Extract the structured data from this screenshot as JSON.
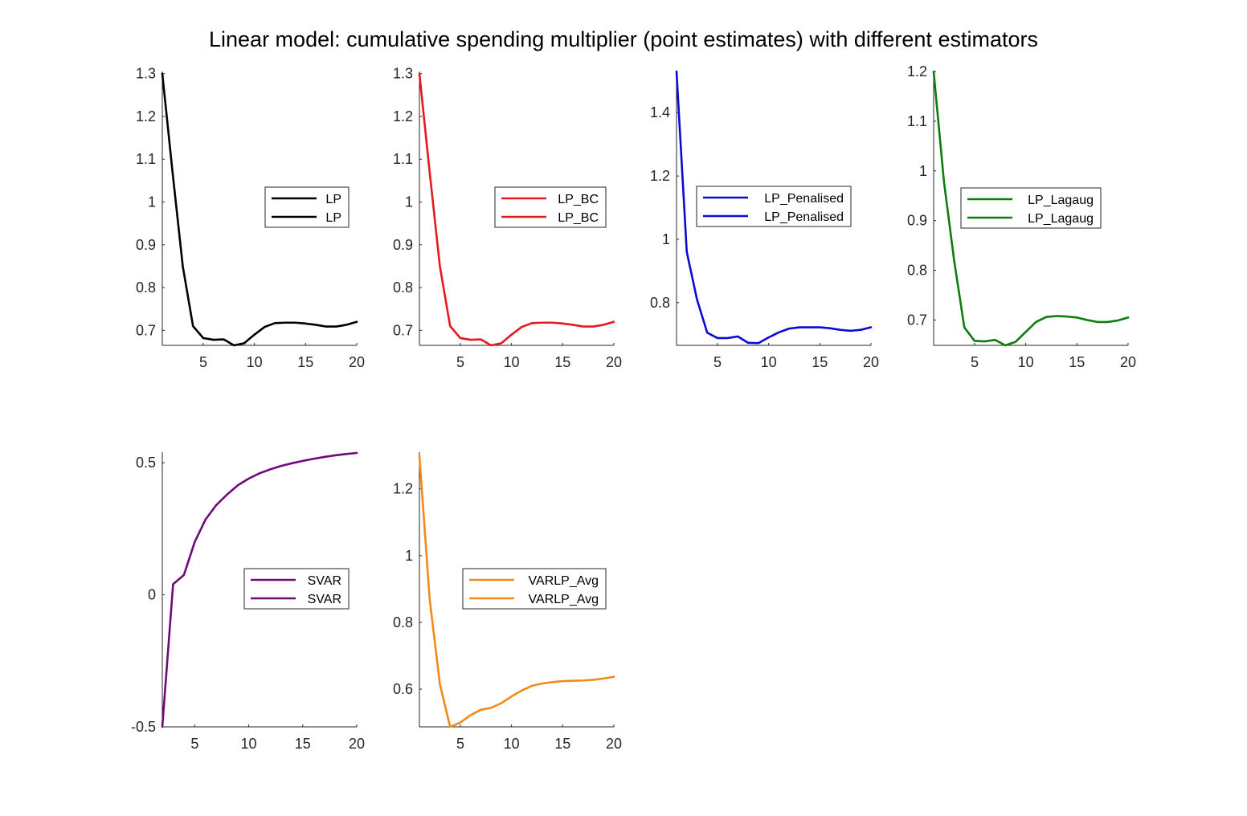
{
  "figure": {
    "title": "Linear model: cumulative spending multiplier (point estimates) with different estimators"
  },
  "chart_data": [
    {
      "type": "line",
      "x": [
        1,
        2,
        3,
        4,
        5,
        6,
        7,
        8,
        9,
        10,
        11,
        12,
        13,
        14,
        15,
        16,
        17,
        18,
        19,
        20
      ],
      "series": [
        {
          "name": "LP",
          "color": "#000000",
          "values": [
            1.3,
            1.07,
            0.85,
            0.71,
            0.682,
            0.678,
            0.679,
            0.665,
            0.67,
            0.69,
            0.708,
            0.717,
            0.718,
            0.718,
            0.716,
            0.713,
            0.709,
            0.709,
            0.713,
            0.72
          ]
        }
      ],
      "legend": [
        "LP",
        "LP"
      ],
      "legend_position": "east",
      "xlim": [
        1,
        20
      ],
      "ylim": [
        0.665,
        1.305
      ],
      "xticks": [
        5,
        10,
        15,
        20
      ],
      "yticks": [
        0.7,
        0.8,
        0.9,
        1,
        1.1,
        1.2,
        1.3
      ]
    },
    {
      "type": "line",
      "x": [
        1,
        2,
        3,
        4,
        5,
        6,
        7,
        8,
        9,
        10,
        11,
        12,
        13,
        14,
        15,
        16,
        17,
        18,
        19,
        20
      ],
      "series": [
        {
          "name": "LP_BC",
          "color": "#e41a1c",
          "values": [
            1.3,
            1.07,
            0.85,
            0.71,
            0.682,
            0.678,
            0.679,
            0.665,
            0.67,
            0.69,
            0.708,
            0.717,
            0.718,
            0.718,
            0.716,
            0.713,
            0.709,
            0.709,
            0.713,
            0.72
          ]
        }
      ],
      "legend": [
        "LP_BC",
        "LP_BC"
      ],
      "legend_position": "east",
      "xlim": [
        1,
        20
      ],
      "ylim": [
        0.665,
        1.305
      ],
      "xticks": [
        5,
        10,
        15,
        20
      ],
      "yticks": [
        0.7,
        0.8,
        0.9,
        1,
        1.1,
        1.2,
        1.3
      ]
    },
    {
      "type": "line",
      "x": [
        1,
        2,
        3,
        4,
        5,
        6,
        7,
        8,
        9,
        10,
        11,
        12,
        13,
        14,
        15,
        16,
        17,
        18,
        19,
        20
      ],
      "series": [
        {
          "name": "LP_Penalised",
          "color": "#0a0ad4",
          "values": [
            1.53,
            0.96,
            0.81,
            0.705,
            0.688,
            0.688,
            0.693,
            0.673,
            0.672,
            0.69,
            0.706,
            0.718,
            0.722,
            0.722,
            0.722,
            0.719,
            0.714,
            0.711,
            0.714,
            0.722
          ]
        }
      ],
      "legend": [
        "LP_Penalised",
        "LP_Penalised"
      ],
      "legend_position": "north",
      "xlim": [
        1,
        20
      ],
      "ylim": [
        0.665,
        1.53
      ],
      "xticks": [
        5,
        10,
        15,
        20
      ],
      "yticks": [
        0.8,
        1,
        1.2,
        1.4
      ]
    },
    {
      "type": "line",
      "x": [
        1,
        2,
        3,
        4,
        5,
        6,
        7,
        8,
        9,
        10,
        11,
        12,
        13,
        14,
        15,
        16,
        17,
        18,
        19,
        20
      ],
      "series": [
        {
          "name": "LP_Lagaug",
          "color": "#0b7d0b",
          "values": [
            1.2,
            0.98,
            0.82,
            0.685,
            0.658,
            0.657,
            0.66,
            0.649,
            0.656,
            0.676,
            0.696,
            0.706,
            0.708,
            0.707,
            0.705,
            0.7,
            0.696,
            0.696,
            0.699,
            0.705
          ]
        }
      ],
      "legend": [
        "LP_Lagaug",
        "LP_Lagaug"
      ],
      "legend_position": "north",
      "xlim": [
        1,
        20
      ],
      "ylim": [
        0.649,
        1.2
      ],
      "xticks": [
        5,
        10,
        15,
        20
      ],
      "yticks": [
        0.7,
        0.8,
        0.9,
        1,
        1.1,
        1.2
      ]
    },
    {
      "type": "line",
      "x": [
        2,
        3,
        4,
        5,
        6,
        7,
        8,
        9,
        10,
        11,
        12,
        13,
        14,
        15,
        16,
        17,
        18,
        19,
        20
      ],
      "series": [
        {
          "name": "SVAR",
          "color": "#6e0a7a",
          "values": [
            -0.5,
            0.04,
            0.075,
            0.2,
            0.285,
            0.34,
            0.38,
            0.415,
            0.44,
            0.46,
            0.475,
            0.488,
            0.498,
            0.507,
            0.515,
            0.522,
            0.528,
            0.533,
            0.537
          ]
        }
      ],
      "legend": [
        "SVAR",
        "SVAR"
      ],
      "legend_position": "east",
      "xlim": [
        2,
        20
      ],
      "ylim": [
        -0.5,
        0.54
      ],
      "xticks": [
        5,
        10,
        15,
        20
      ],
      "yticks": [
        -0.5,
        0,
        0.5
      ]
    },
    {
      "type": "line",
      "x": [
        1,
        2,
        3,
        4,
        5,
        6,
        7,
        8,
        9,
        10,
        11,
        12,
        13,
        14,
        15,
        16,
        17,
        18,
        19,
        20
      ],
      "series": [
        {
          "name": "VARLP_Avg",
          "color": "#f28a1a",
          "values": [
            1.3,
            0.87,
            0.615,
            0.487,
            0.5,
            0.522,
            0.538,
            0.544,
            0.558,
            0.578,
            0.596,
            0.61,
            0.617,
            0.621,
            0.624,
            0.625,
            0.626,
            0.628,
            0.632,
            0.637
          ]
        }
      ],
      "legend": [
        "VARLP_Avg",
        "VARLP_Avg"
      ],
      "legend_position": "east",
      "xlim": [
        1,
        20
      ],
      "ylim": [
        0.487,
        1.31
      ],
      "xticks": [
        5,
        10,
        15,
        20
      ],
      "yticks": [
        0.6,
        0.8,
        1,
        1.2
      ]
    }
  ]
}
